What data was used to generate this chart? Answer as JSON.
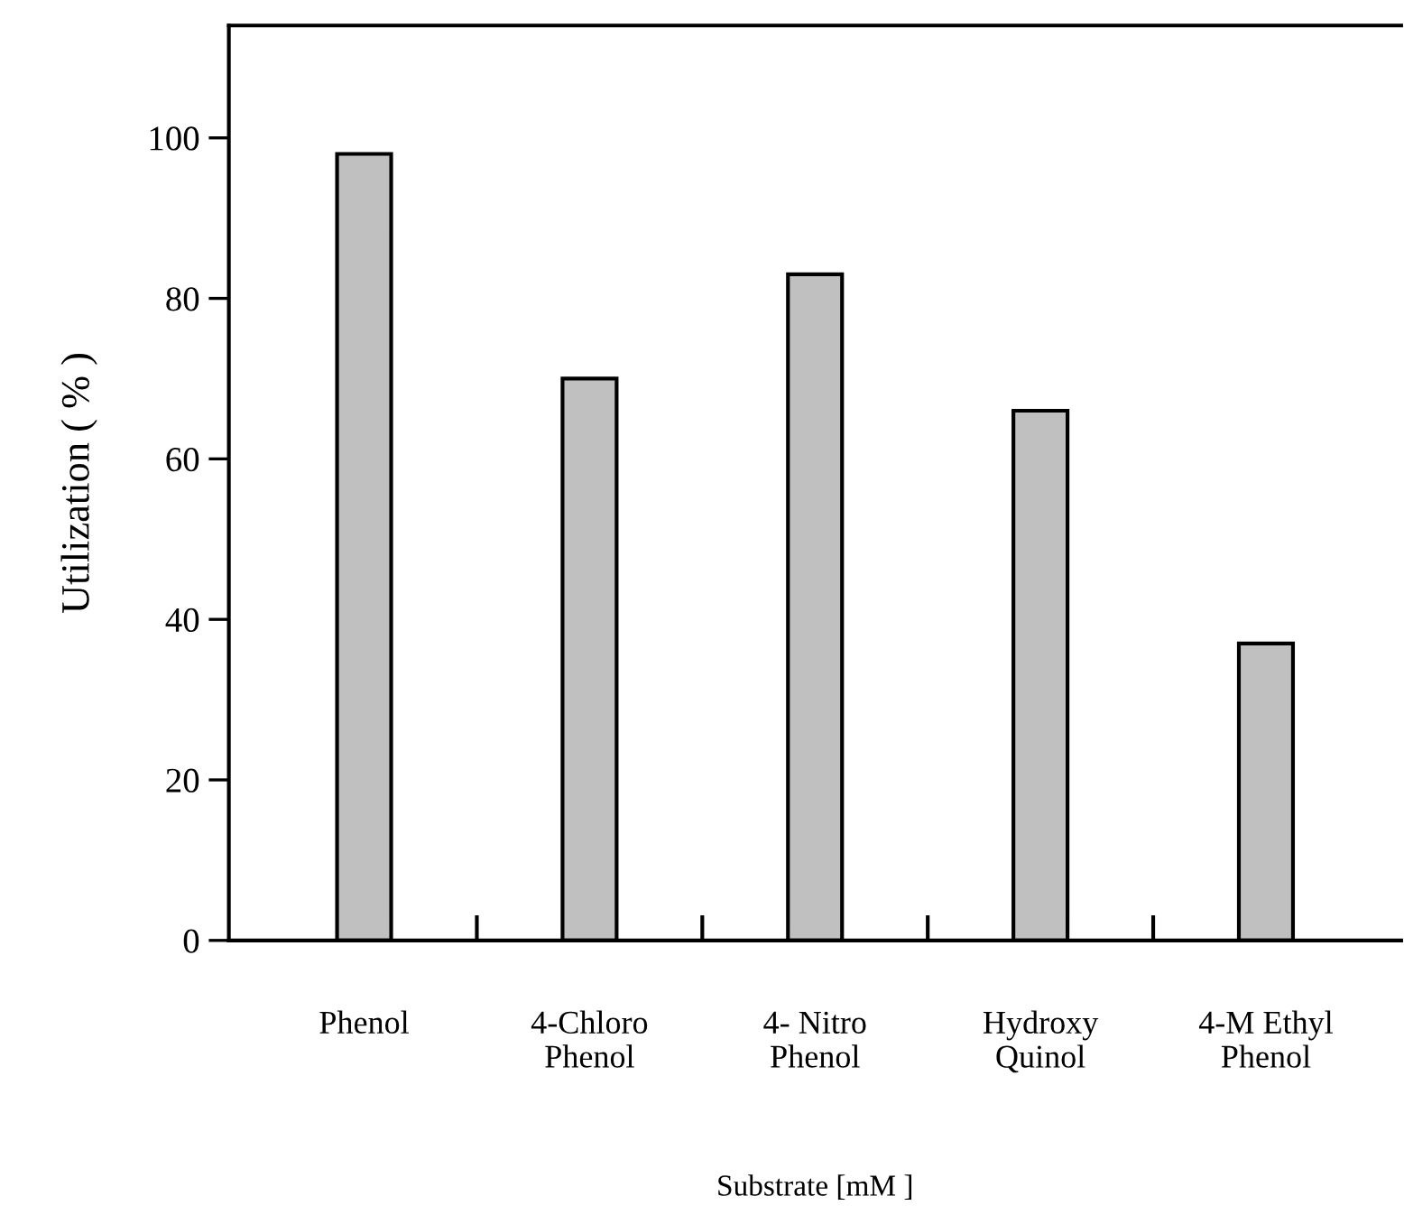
{
  "chart_data": {
    "type": "bar",
    "categories": [
      "Phenol",
      "4-Chloro\nPhenol",
      "4- Nitro\nPhenol",
      "Hydroxy\nQuinol",
      "4-M Ethyl\nPhenol"
    ],
    "values": [
      98,
      70,
      83,
      66,
      37
    ],
    "color": "#c0c0c0",
    "xlabel": "Substrate [mM ]",
    "ylabel": "Utilization ( % )",
    "ylim": [
      0,
      114
    ],
    "yticks": [
      0,
      20,
      40,
      60,
      80,
      100
    ],
    "grid": false,
    "legend": false
  }
}
